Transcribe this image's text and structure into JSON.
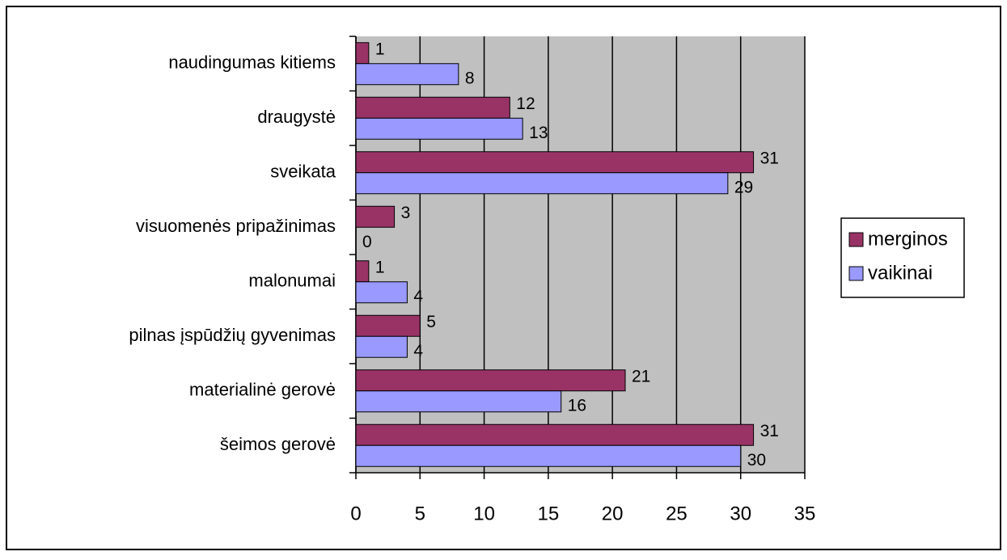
{
  "chart_data": {
    "type": "bar",
    "orientation": "horizontal",
    "categories": [
      "naudingumas kitiems",
      "draugystė",
      "sveikata",
      "visuomenės pripažinimas",
      "malonumai",
      "pilnas įspūdžių gyvenimas",
      "materialinė gerovė",
      "šeimos gerovė"
    ],
    "series": [
      {
        "name": "merginos",
        "color": "#993366",
        "values": [
          1,
          12,
          31,
          3,
          1,
          5,
          21,
          31
        ]
      },
      {
        "name": "vaikinai",
        "color": "#9999ff",
        "values": [
          8,
          13,
          29,
          0,
          4,
          4,
          16,
          30
        ]
      }
    ],
    "xlim": [
      0,
      35
    ],
    "xticks": [
      0,
      5,
      10,
      15,
      20,
      25,
      30,
      35
    ],
    "grid": true,
    "legend": "right"
  }
}
